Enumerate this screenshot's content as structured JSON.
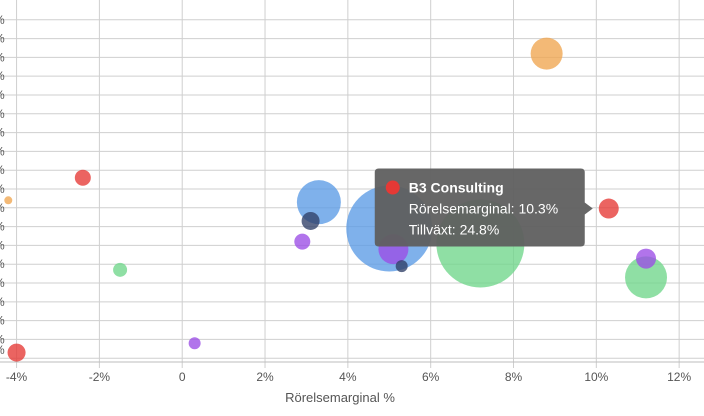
{
  "chart_data": {
    "type": "scatter",
    "xlabel": "Rörelsemarginal %",
    "xlim": [
      -4.4,
      12.6
    ],
    "ylim": [
      -16,
      76
    ],
    "x_ticks": [
      -4,
      -2,
      0,
      2,
      4,
      6,
      8,
      10,
      12
    ],
    "x_tick_labels": [
      "-4%",
      "-2%",
      "0",
      "2%",
      "4%",
      "6%",
      "8%",
      "10%",
      "12%"
    ],
    "y_grid": [
      -15,
      -10,
      -5,
      0,
      5,
      10,
      15,
      20,
      25,
      30,
      35,
      40,
      45,
      50,
      55,
      60,
      65,
      70,
      75
    ],
    "y_tick_labels_visible": [
      "%",
      "%",
      "%",
      "%",
      "%",
      "%",
      "%",
      "%",
      "%",
      "%",
      "%",
      "%",
      "%",
      "%",
      "%",
      "%",
      "%",
      "%"
    ],
    "y_tick_bottom_label": "%",
    "colors": {
      "blue": "#5b9be6",
      "orange": "#f0a550",
      "red": "#e53935",
      "green": "#6fd68a",
      "purple": "#9b4de6",
      "navy": "#2f3f66"
    },
    "points": [
      {
        "x": 8.8,
        "y": 66,
        "size": 16,
        "color": "orange"
      },
      {
        "x": -4.2,
        "y": 27,
        "size": 4,
        "color": "orange"
      },
      {
        "x": -2.4,
        "y": 33,
        "size": 8,
        "color": "red"
      },
      {
        "x": -4.0,
        "y": -13.5,
        "size": 9,
        "color": "red"
      },
      {
        "x": 10.3,
        "y": 24.8,
        "size": 10,
        "color": "red"
      },
      {
        "x": -1.5,
        "y": 8.5,
        "size": 7,
        "color": "green"
      },
      {
        "x": 7.2,
        "y": 15.5,
        "size": 44,
        "color": "green"
      },
      {
        "x": 11.2,
        "y": 6.5,
        "size": 21,
        "color": "green"
      },
      {
        "x": 3.3,
        "y": 26.5,
        "size": 22,
        "color": "blue"
      },
      {
        "x": 5.0,
        "y": 19.5,
        "size": 43,
        "color": "blue"
      },
      {
        "x": 3.1,
        "y": 21.5,
        "size": 9,
        "color": "navy"
      },
      {
        "x": 5.3,
        "y": 9.5,
        "size": 6,
        "color": "navy"
      },
      {
        "x": 2.9,
        "y": 16,
        "size": 8,
        "color": "purple"
      },
      {
        "x": 5.1,
        "y": 14,
        "size": 15,
        "color": "purple"
      },
      {
        "x": 0.3,
        "y": -11,
        "size": 6,
        "color": "purple"
      },
      {
        "x": 11.2,
        "y": 11.5,
        "size": 10,
        "color": "purple"
      }
    ],
    "tooltip": {
      "title": "B3 Consulting",
      "line1": "Rörelsemarginal: 10.3%",
      "line2": "Tillväxt: 24.8%",
      "marker_color": "#e53935",
      "anchor_x": 10.3,
      "anchor_y": 24.8
    }
  }
}
